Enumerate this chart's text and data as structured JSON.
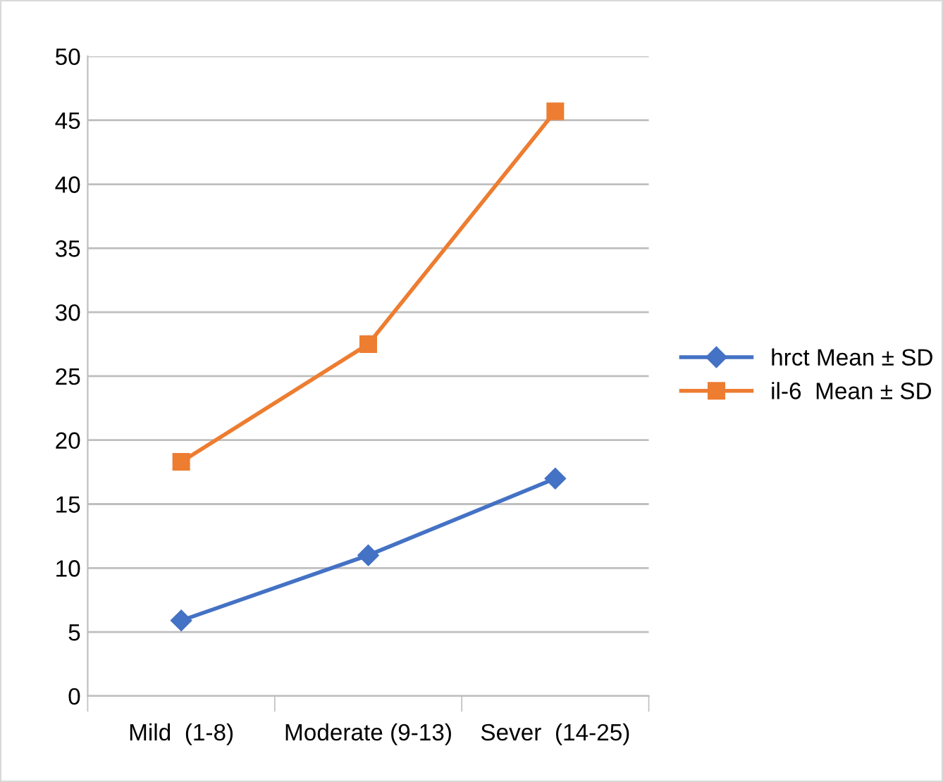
{
  "chart_data": {
    "type": "line",
    "categories": [
      "Mild  (1-8)",
      "Moderate (9-13)",
      "Sever  (14-25)"
    ],
    "series": [
      {
        "name": "hrct Mean ± SD",
        "color": "#4472c4",
        "marker": "diamond",
        "values": [
          5.9,
          11.0,
          17.0
        ]
      },
      {
        "name": "il-6  Mean ± SD",
        "color": "#ed7d31",
        "marker": "square",
        "values": [
          18.3,
          27.5,
          45.7
        ]
      }
    ],
    "ylim": [
      0,
      50
    ],
    "yticks": [
      0,
      5,
      10,
      15,
      20,
      25,
      30,
      35,
      40,
      45,
      50
    ],
    "grid": "y",
    "legend": "right",
    "line_style": "solid"
  }
}
